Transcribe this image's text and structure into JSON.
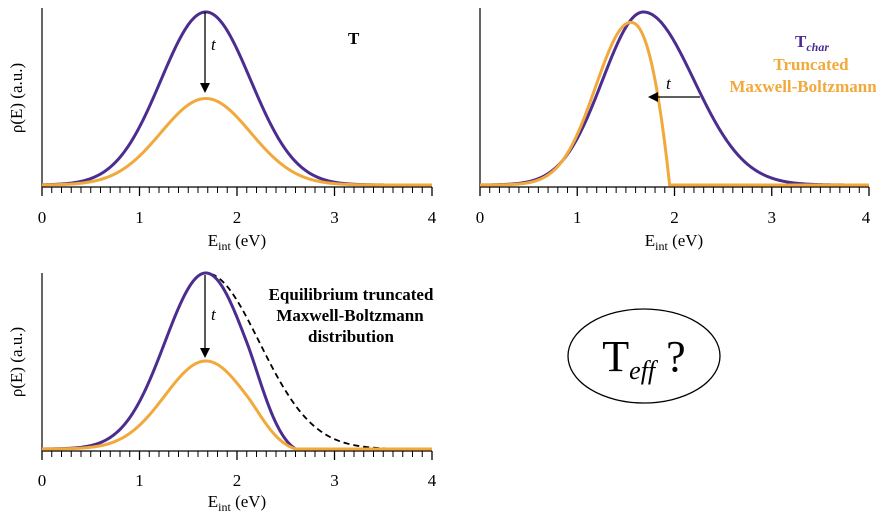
{
  "colors": {
    "purple": "#4b2d8f",
    "orange": "#f2a93b",
    "axis": "#000000",
    "dashed": "#000000"
  },
  "chart_data": [
    {
      "type": "line",
      "panel": "top-left",
      "xlabel": "E",
      "xlabel_sub": "int",
      "xlabel_unit": "(eV)",
      "ylabel": "ρ(E) (a.u.)",
      "xlim": [
        0,
        4
      ],
      "xticks": [
        "0",
        "1",
        "2",
        "3",
        "4"
      ],
      "annotation_text": "T",
      "arrow_label": "t",
      "series": [
        {
          "color": "#4b2d8f",
          "peak_x": 1.68,
          "peak_y": 1.0,
          "sigma": 0.46
        },
        {
          "color": "#f2a93b",
          "peak_x": 1.68,
          "peak_y": 0.5,
          "sigma": 0.46
        }
      ]
    },
    {
      "type": "line",
      "panel": "top-right",
      "xlabel": "E",
      "xlabel_sub": "int",
      "xlabel_unit": "(eV)",
      "ylabel": "",
      "xlim": [
        0,
        4
      ],
      "xticks": [
        "0",
        "1",
        "2",
        "3",
        "4"
      ],
      "legend": {
        "purple_main": "T",
        "purple_sub": "char",
        "orange_line1": "Truncated",
        "orange_line2": "Maxwell-Boltzmann"
      },
      "arrow_label": "t",
      "series": [
        {
          "color": "#4b2d8f",
          "peak_x": 1.68,
          "peak_y": 1.0,
          "sigma_left": 0.42,
          "sigma_right": 0.52
        },
        {
          "color": "#f2a93b",
          "peak_x": 1.55,
          "peak_y": 0.94,
          "truncate_x": 1.95
        }
      ]
    },
    {
      "type": "line",
      "panel": "bottom-left",
      "xlabel": "E",
      "xlabel_sub": "int",
      "xlabel_unit": "(eV)",
      "ylabel": "ρ(E) (a.u.)",
      "xlim": [
        0,
        4
      ],
      "xticks": [
        "0",
        "1",
        "2",
        "3",
        "4"
      ],
      "annotation_lines": [
        "Equilibrium truncated",
        "Maxwell-Boltzmann",
        "distribution"
      ],
      "arrow_label": "t",
      "series": [
        {
          "color": "#4b2d8f",
          "peak_x": 1.68,
          "peak_y": 1.0,
          "sigma": 0.42
        },
        {
          "color": "#f2a93b",
          "peak_x": 1.68,
          "peak_y": 0.5,
          "sigma": 0.42
        },
        {
          "color": "#000000",
          "style": "dashed",
          "peak_x": 1.68,
          "peak_y": 1.0,
          "sigma_left": 0.42,
          "sigma_right": 0.55
        }
      ]
    }
  ],
  "question_bubble": {
    "main": "T",
    "sub": "eff",
    "suffix": " ?"
  }
}
